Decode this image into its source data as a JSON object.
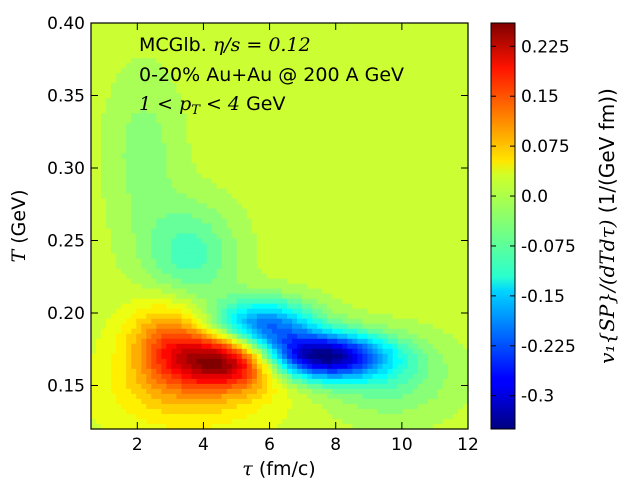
{
  "chart_data": {
    "type": "heatmap",
    "x": {
      "label_symbol": "τ",
      "label_unit": "(fm/c)",
      "range": [
        0.6,
        12
      ],
      "ticks": [
        2,
        4,
        6,
        8,
        10,
        12
      ],
      "tick_labels": [
        "2",
        "4",
        "6",
        "8",
        "10",
        "12"
      ]
    },
    "y": {
      "label_symbol": "T",
      "label_unit": "(GeV)",
      "range": [
        0.12,
        0.4
      ],
      "ticks": [
        0.15,
        0.2,
        0.25,
        0.3,
        0.35,
        0.4
      ],
      "tick_labels": [
        "0.15",
        "0.20",
        "0.25",
        "0.30",
        "0.35",
        "0.40"
      ]
    },
    "annotations": {
      "line1_text": "MCGlb.",
      "line1_math": "η/s = 0.12",
      "line2": "0-20% Au+Au @ 200 A GeV",
      "line3_math": "1 < p",
      "line3_sub": "T",
      "line3_math2": " < 4",
      "line3_text": "GeV"
    },
    "colorbar": {
      "label_math": "v₁{SP}/(dTdτ)",
      "label_unit": "(1/(GeV fm))",
      "range": [
        -0.35,
        0.26
      ],
      "ticks": [
        0.225,
        0.15,
        0.075,
        0.0,
        -0.075,
        -0.15,
        -0.225,
        -0.3
      ],
      "tick_labels": [
        "0.225",
        "0.15",
        "0.075",
        "0.0",
        "-0.075",
        "-0.15",
        "-0.225",
        "-0.3"
      ],
      "colormap": "jet"
    },
    "features": [
      {
        "name": "positive-peak",
        "tau": 4.8,
        "T": 0.168,
        "sigma_tau": 1.1,
        "sigma_T": 0.013,
        "value": 0.25
      },
      {
        "name": "positive-arm",
        "tau": 3.0,
        "T": 0.18,
        "sigma_tau": 0.9,
        "sigma_T": 0.02,
        "value": 0.12
      },
      {
        "name": "positive-base",
        "tau": 3.6,
        "T": 0.145,
        "sigma_tau": 1.8,
        "sigma_T": 0.02,
        "value": 0.06
      },
      {
        "name": "negative-trough",
        "tau": 7.6,
        "T": 0.17,
        "sigma_tau": 1.3,
        "sigma_T": 0.011,
        "value": -0.33
      },
      {
        "name": "negative-arm",
        "tau": 5.8,
        "T": 0.19,
        "sigma_tau": 1.1,
        "sigma_T": 0.013,
        "value": -0.22
      },
      {
        "name": "negative-tail-high",
        "tau": 3.6,
        "T": 0.24,
        "sigma_tau": 1.0,
        "sigma_T": 0.025,
        "value": -0.08
      },
      {
        "name": "negative-tail-top",
        "tau": 2.2,
        "T": 0.31,
        "sigma_tau": 0.8,
        "sigma_T": 0.04,
        "value": -0.04
      },
      {
        "name": "negative-far",
        "tau": 9.6,
        "T": 0.155,
        "sigma_tau": 1.4,
        "sigma_T": 0.02,
        "value": -0.06
      }
    ]
  }
}
